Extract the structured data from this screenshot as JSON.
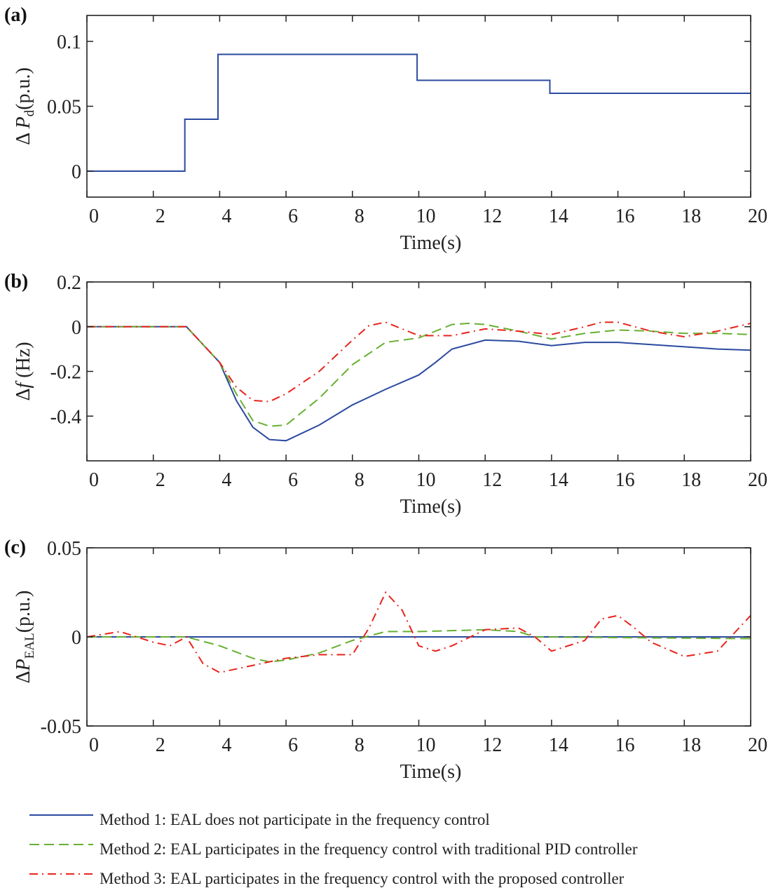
{
  "chart_data": [
    {
      "panel": "(a)",
      "type": "line",
      "xlabel": "Time(s)",
      "ylabel": "Δ P_d(p.u.)",
      "ylabel_parts": {
        "prefix": "Δ ",
        "var": "P",
        "sub": "d",
        "unit": "(p.u.)"
      },
      "xlim": [
        0,
        20
      ],
      "ylim": [
        -0.02,
        0.12
      ],
      "xticks": [
        "0",
        "2",
        "4",
        "6",
        "8",
        "10",
        "12",
        "14",
        "16",
        "18",
        "20"
      ],
      "yticks": [
        {
          "v": 0,
          "label": "0"
        },
        {
          "v": 0.05,
          "label": "0.05"
        },
        {
          "v": 0.1,
          "label": "0.1"
        }
      ],
      "series": [
        {
          "name": "Method 1",
          "step": true,
          "x": [
            0,
            2.95,
            2.95,
            3.95,
            3.95,
            9.95,
            9.95,
            13.95,
            13.95,
            20
          ],
          "y": [
            0,
            0,
            0.04,
            0.04,
            0.09,
            0.09,
            0.07,
            0.07,
            0.06,
            0.06
          ]
        }
      ]
    },
    {
      "panel": "(b)",
      "type": "line",
      "xlabel": "Time(s)",
      "ylabel": "Δf (Hz)",
      "ylabel_parts": {
        "prefix": "Δ",
        "var": "f",
        "sub": "",
        "unit": " (Hz)"
      },
      "xlim": [
        0,
        20
      ],
      "ylim": [
        -0.6,
        0.2
      ],
      "xticks": [
        "0",
        "2",
        "4",
        "6",
        "8",
        "10",
        "12",
        "14",
        "16",
        "18",
        "20"
      ],
      "yticks": [
        {
          "v": 0.2,
          "label": "0.2"
        },
        {
          "v": 0,
          "label": "0"
        },
        {
          "v": -0.2,
          "label": "-0.2"
        },
        {
          "v": -0.4,
          "label": "-0.4"
        }
      ],
      "series": [
        {
          "name": "Method 1",
          "x": [
            0,
            3,
            3.5,
            4,
            4.5,
            5,
            5.5,
            6,
            7,
            8,
            9,
            10,
            10.5,
            11,
            12,
            13,
            14,
            15,
            16,
            17,
            18,
            19,
            20
          ],
          "y": [
            0,
            0,
            -0.08,
            -0.16,
            -0.33,
            -0.45,
            -0.505,
            -0.51,
            -0.44,
            -0.35,
            -0.28,
            -0.216,
            -0.16,
            -0.1,
            -0.06,
            -0.065,
            -0.085,
            -0.07,
            -0.07,
            -0.08,
            -0.09,
            -0.1,
            -0.105
          ]
        },
        {
          "name": "Method 2",
          "x": [
            0,
            3,
            3.5,
            4,
            4.5,
            5,
            5.5,
            6,
            7,
            8,
            9,
            10,
            11,
            11.5,
            12,
            13,
            14,
            15,
            16,
            17,
            18,
            19,
            20
          ],
          "y": [
            0,
            0,
            -0.08,
            -0.16,
            -0.3,
            -0.42,
            -0.445,
            -0.44,
            -0.32,
            -0.17,
            -0.07,
            -0.05,
            0.01,
            0.015,
            0.01,
            -0.02,
            -0.055,
            -0.03,
            -0.015,
            -0.02,
            -0.03,
            -0.03,
            -0.035
          ]
        },
        {
          "name": "Method 3",
          "x": [
            0,
            3,
            3.5,
            4,
            4.5,
            5,
            5.5,
            6,
            7,
            8,
            8.5,
            9,
            9.5,
            10,
            11,
            12,
            13,
            14,
            15,
            15.5,
            16,
            17,
            18,
            19,
            20
          ],
          "y": [
            0,
            0,
            -0.08,
            -0.16,
            -0.27,
            -0.33,
            -0.335,
            -0.3,
            -0.2,
            -0.06,
            0.005,
            0.02,
            -0.01,
            -0.04,
            -0.04,
            -0.01,
            -0.02,
            -0.035,
            0.0,
            0.02,
            0.02,
            -0.02,
            -0.045,
            -0.02,
            0.015
          ]
        }
      ]
    },
    {
      "panel": "(c)",
      "type": "line",
      "xlabel": "Time(s)",
      "ylabel": "ΔP_EAL(p.u.)",
      "ylabel_parts": {
        "prefix": "Δ",
        "var": "P",
        "sub": "EAL",
        "unit": "(p.u.)"
      },
      "xlim": [
        0,
        20
      ],
      "ylim": [
        -0.05,
        0.05
      ],
      "xticks": [
        "0",
        "2",
        "4",
        "6",
        "8",
        "10",
        "12",
        "14",
        "16",
        "18",
        "20"
      ],
      "yticks": [
        {
          "v": 0.05,
          "label": "0.05"
        },
        {
          "v": 0,
          "label": "0"
        },
        {
          "v": -0.05,
          "label": "-0.05"
        }
      ],
      "series": [
        {
          "name": "Method 1",
          "x": [
            0,
            20
          ],
          "y": [
            0,
            0
          ]
        },
        {
          "name": "Method 2",
          "x": [
            0,
            3,
            4,
            5,
            5.5,
            6,
            7,
            8,
            9,
            10,
            12,
            13,
            13.5,
            20
          ],
          "y": [
            0,
            0,
            -0.005,
            -0.012,
            -0.014,
            -0.013,
            -0.009,
            -0.002,
            0.003,
            0.003,
            0.004,
            0.003,
            0,
            -0.001
          ]
        },
        {
          "name": "Method 3",
          "x": [
            0,
            1,
            2,
            2.5,
            3,
            3.5,
            4,
            5,
            6,
            7,
            8,
            8.5,
            9,
            9.5,
            10,
            10.5,
            11,
            12,
            13,
            13.5,
            14,
            15,
            15.5,
            16,
            16.5,
            17,
            18,
            19,
            20
          ],
          "y": [
            0,
            0.003,
            -0.003,
            -0.005,
            0,
            -0.015,
            -0.02,
            -0.016,
            -0.012,
            -0.01,
            -0.01,
            0.005,
            0.025,
            0.015,
            -0.005,
            -0.008,
            -0.005,
            0.004,
            0.005,
            0,
            -0.008,
            -0.002,
            0.01,
            0.012,
            0.005,
            -0.003,
            -0.011,
            -0.008,
            0.012
          ]
        }
      ]
    }
  ],
  "legend": [
    {
      "label": "Method 1: EAL does not participate in the frequency control",
      "color": "#2b4aa0",
      "dash": "solid"
    },
    {
      "label": "Method 2: EAL participates in the frequency control with traditional PID controller",
      "color": "#66b032",
      "dash": "dashed"
    },
    {
      "label": "Method 3: EAL participates in the frequency control with the proposed controller",
      "color": "#e8241c",
      "dash": "dashdot"
    }
  ]
}
